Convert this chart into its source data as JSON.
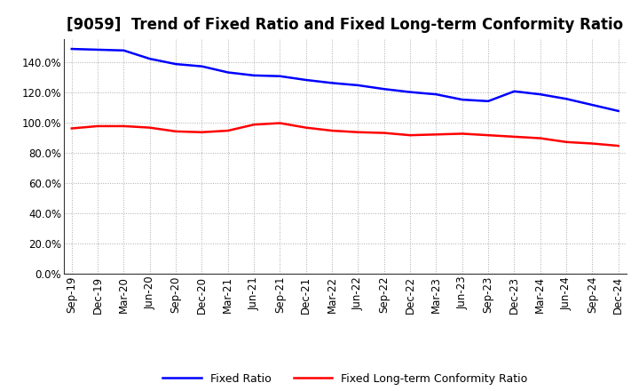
{
  "title": "[9059]  Trend of Fixed Ratio and Fixed Long-term Conformity Ratio",
  "x_labels": [
    "Sep-19",
    "Dec-19",
    "Mar-20",
    "Jun-20",
    "Sep-20",
    "Dec-20",
    "Mar-21",
    "Jun-21",
    "Sep-21",
    "Dec-21",
    "Mar-22",
    "Jun-22",
    "Sep-22",
    "Dec-22",
    "Mar-23",
    "Jun-23",
    "Sep-23",
    "Dec-23",
    "Mar-24",
    "Jun-24",
    "Sep-24",
    "Dec-24"
  ],
  "fixed_ratio": [
    148.5,
    148.0,
    147.5,
    142.0,
    138.5,
    137.0,
    133.0,
    131.0,
    130.5,
    128.0,
    126.0,
    124.5,
    122.0,
    120.0,
    118.5,
    115.0,
    114.0,
    120.5,
    118.5,
    115.5,
    111.5,
    107.5
  ],
  "fixed_lt_ratio": [
    96.0,
    97.5,
    97.5,
    96.5,
    94.0,
    93.5,
    94.5,
    98.5,
    99.5,
    96.5,
    94.5,
    93.5,
    93.0,
    91.5,
    92.0,
    92.5,
    91.5,
    90.5,
    89.5,
    87.0,
    86.0,
    84.5
  ],
  "fixed_ratio_color": "#0000FF",
  "fixed_lt_ratio_color": "#FF0000",
  "background_color": "#FFFFFF",
  "plot_bg_color": "#FFFFFF",
  "grid_color": "#888888",
  "ylim": [
    0,
    155
  ],
  "yticks": [
    0,
    20,
    40,
    60,
    80,
    100,
    120,
    140
  ],
  "legend_fixed_ratio": "Fixed Ratio",
  "legend_fixed_lt_ratio": "Fixed Long-term Conformity Ratio",
  "title_fontsize": 12,
  "label_fontsize": 8.5
}
